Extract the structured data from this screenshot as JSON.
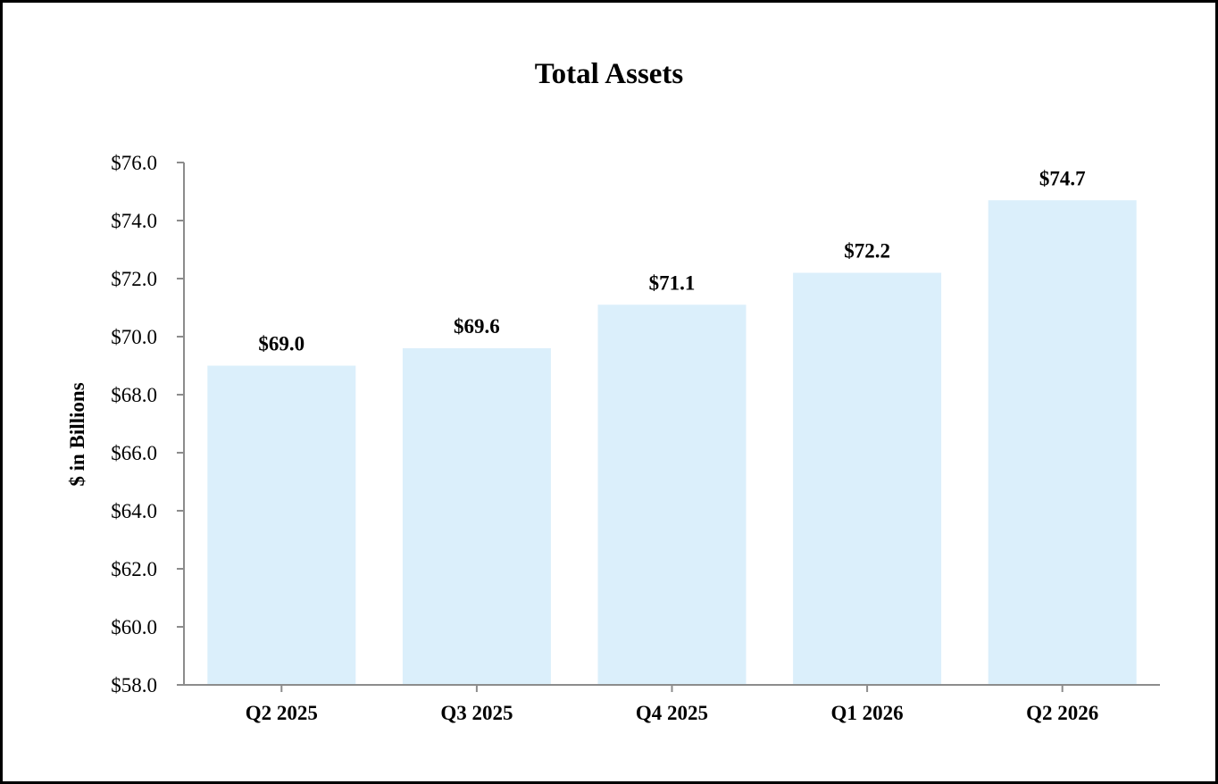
{
  "chart_data": {
    "type": "bar",
    "title": "Total Assets",
    "xlabel": "",
    "ylabel": "$ in Billions",
    "categories": [
      "Q2 2025",
      "Q3 2025",
      "Q4 2025",
      "Q1 2026",
      "Q2 2026"
    ],
    "values": [
      69.0,
      69.6,
      71.1,
      72.2,
      74.7
    ],
    "data_labels": [
      "$69.0",
      "$69.6",
      "$71.1",
      "$72.2",
      "$74.7"
    ],
    "ylim": [
      58.0,
      76.0
    ],
    "yticks": [
      58.0,
      60.0,
      62.0,
      64.0,
      66.0,
      68.0,
      70.0,
      72.0,
      74.0,
      76.0
    ],
    "ytick_labels": [
      "$58.0",
      "$60.0",
      "$62.0",
      "$64.0",
      "$66.0",
      "$68.0",
      "$70.0",
      "$72.0",
      "$74.0",
      "$76.0"
    ],
    "grid": false,
    "legend": "none",
    "colors": {
      "bar": "#dbeffb",
      "axis": "#8c8c8c",
      "text": "#000000",
      "border": "#000000"
    }
  }
}
